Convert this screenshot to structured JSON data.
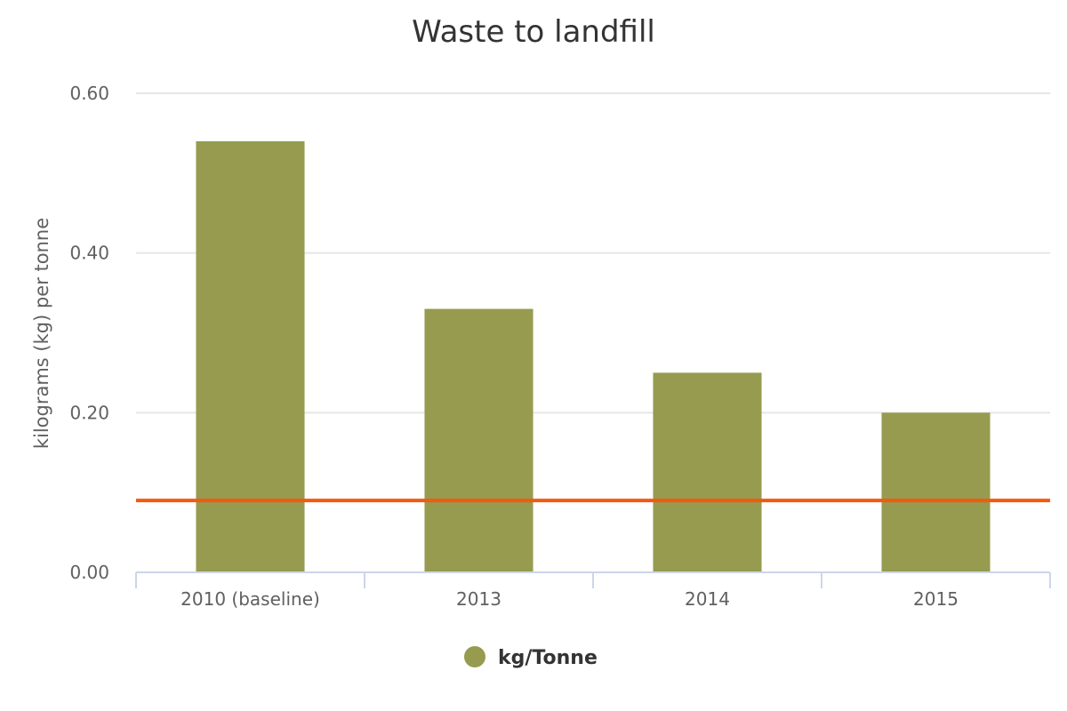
{
  "chart_data": {
    "type": "bar",
    "title": "Waste to landfill",
    "ylabel": "kilograms (kg) per tonne",
    "xlabel": "",
    "categories": [
      "2010 (baseline)",
      "2013",
      "2014",
      "2015"
    ],
    "series": [
      {
        "name": "kg/Tonne",
        "values": [
          0.54,
          0.33,
          0.25,
          0.2
        ],
        "color": "#969b4f"
      }
    ],
    "target_line": {
      "value": 0.09,
      "color": "#f15a0f"
    },
    "ylim": [
      0,
      0.6
    ],
    "yticks": [
      0,
      0.2,
      0.4,
      0.6
    ],
    "ytick_labels": [
      "0.00",
      "0.20",
      "0.40",
      "0.60"
    ],
    "grid": true,
    "legend_position": "bottom-center"
  }
}
